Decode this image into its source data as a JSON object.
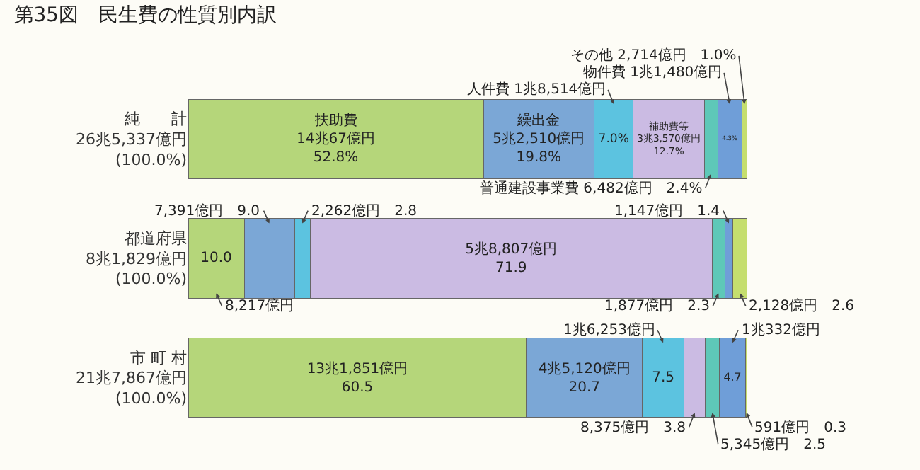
{
  "chart_data": {
    "type": "bar",
    "orientation": "horizontal",
    "stacked": true,
    "title": "第35図　民生費の性質別内訳",
    "categories": [
      "純　　計\n26兆5,337億円\n(100.0%)",
      "都道府県\n8兆1,829億円\n(100.0%)",
      "市 町 村\n21兆7,867億円\n(100.0%)"
    ],
    "xlim": [
      0,
      100
    ],
    "tick_labels": false,
    "series": [
      {
        "color": "#b5d67a",
        "values": [
          52.8,
          10.0,
          60.5
        ],
        "value_labels": [
          "扶助費\n14兆67億円\n52.8%",
          "10.0",
          "13兆1,851億円\n60.5"
        ]
      },
      {
        "color": "#7ba7d6",
        "values": [
          19.8,
          9.0,
          20.7
        ],
        "value_labels": [
          "繰出金\n5兆2,510億円\n19.8%",
          null,
          "4兆5,120億円\n20.7"
        ]
      },
      {
        "color": "#5cc3e0",
        "values": [
          7.0,
          2.8,
          7.5
        ],
        "value_labels": [
          "7.0%",
          null,
          "7.5"
        ]
      },
      {
        "color": "#cbbbe3",
        "values": [
          12.7,
          71.9,
          3.8
        ],
        "value_labels": [
          "補助費等\n3兆3,570億円\n12.7%",
          "5兆8,807億円\n71.9",
          null
        ]
      },
      {
        "color": "#5ec8b8",
        "values": [
          2.4,
          2.3,
          2.5
        ],
        "value_labels": [
          null,
          null,
          null
        ]
      },
      {
        "color": "#6f9ed8",
        "values": [
          4.3,
          1.4,
          4.7
        ],
        "value_labels": [
          "4.3%",
          null,
          "4.7"
        ]
      },
      {
        "color": "#c5de6e",
        "values": [
          1.0,
          2.6,
          0.3
        ],
        "value_labels": [
          null,
          null,
          null
        ]
      }
    ],
    "annotations": [
      "人件費 1兆8,514億円",
      "物件費 1兆1,480億円",
      "その他 2,714億円　1.0%",
      "普通建設事業費 6,482億円　2.4%",
      "7,391億円　9.0",
      "2,262億円　2.8",
      "1,147億円　1.4",
      "8,217億円",
      "1,877億円　2.3",
      "2,128億円　2.6",
      "1兆6,253億円",
      "1兆332億円",
      "8,375億円　3.8",
      "591億円　0.3",
      "5,345億円　2.5"
    ]
  }
}
